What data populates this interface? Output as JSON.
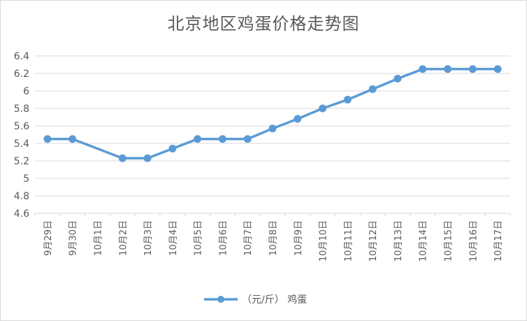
{
  "chart_data": {
    "type": "line",
    "title": "北京地区鸡蛋价格走势图",
    "categories": [
      "9月29日",
      "9月30日",
      "10月1日",
      "10月2日",
      "10月3日",
      "10月4日",
      "10月5日",
      "10月6日",
      "10月7日",
      "10月8日",
      "10月9日",
      "10月10日",
      "10月11日",
      "10月12日",
      "10月13日",
      "10月14日",
      "10月15日",
      "10月16日",
      "10月17日"
    ],
    "series": [
      {
        "name": "（元/斤） 鸡蛋",
        "values": [
          5.45,
          5.45,
          null,
          5.23,
          5.23,
          5.34,
          5.45,
          5.45,
          5.45,
          5.57,
          5.68,
          5.8,
          5.9,
          6.02,
          6.14,
          6.25,
          6.25,
          6.25,
          6.25
        ]
      }
    ],
    "ylim": [
      4.6,
      6.4
    ],
    "yticks": [
      "4.6",
      "4.8",
      "5",
      "5.2",
      "5.4",
      "5.6",
      "5.8",
      "6",
      "6.2",
      "6.4"
    ],
    "grid": true,
    "legend": "bottom",
    "line_color": "#5b9bd5"
  }
}
